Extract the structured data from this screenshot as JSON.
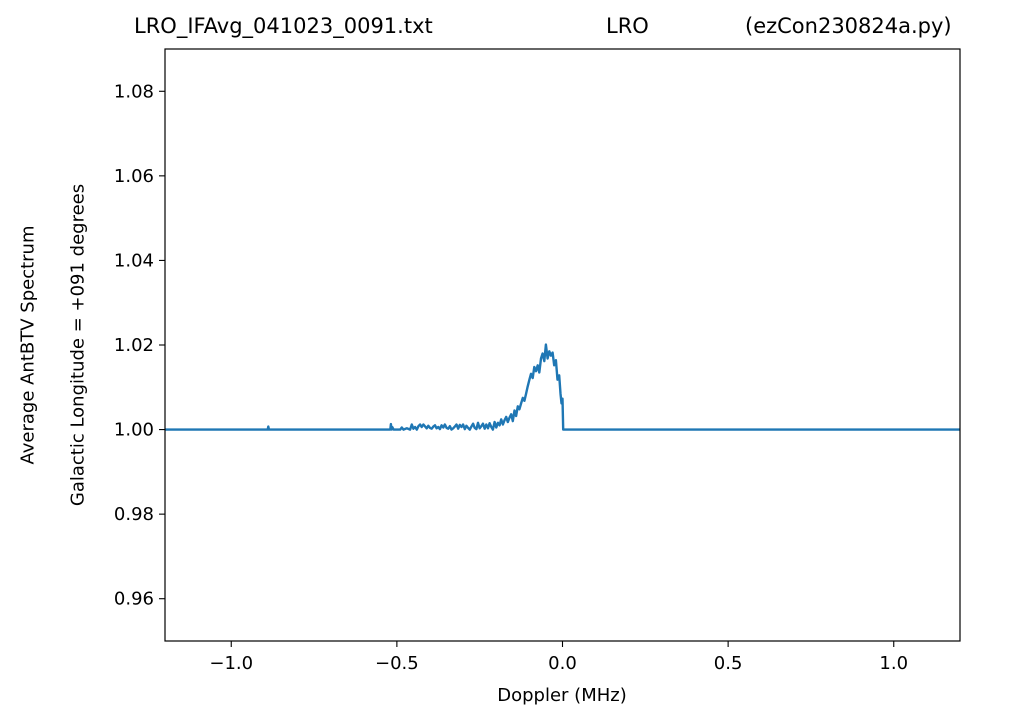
{
  "title": {
    "left": "LRO_IFAvg_041023_0091.txt",
    "middle": "LRO",
    "right": "(ezCon230824a.py)"
  },
  "chart_data": {
    "type": "line",
    "xlabel": "Doppler (MHz)",
    "ylabel_lines": [
      "Average AntBTV Spectrum",
      "Galactic Longitude = +091 degrees"
    ],
    "xlim": [
      -1.2,
      1.2
    ],
    "ylim": [
      0.95,
      1.09
    ],
    "x_ticks": [
      -1.0,
      -0.5,
      0.0,
      0.5,
      1.0
    ],
    "x_tick_labels": [
      "−1.0",
      "−0.5",
      "0.0",
      "0.5",
      "1.0"
    ],
    "y_ticks": [
      0.96,
      0.98,
      1.0,
      1.02,
      1.04,
      1.06,
      1.08
    ],
    "y_tick_labels": [
      "0.96",
      "0.98",
      "1.00",
      "1.02",
      "1.04",
      "1.06",
      "1.08"
    ],
    "grid": false,
    "line_color": "#1f77b4",
    "series": [
      {
        "x": [
          -1.2,
          -0.89,
          -0.888,
          -0.886,
          -0.52,
          -0.518,
          -0.516,
          -0.514,
          -0.51,
          -0.49,
          -0.485,
          -0.48,
          -0.47,
          -0.46,
          -0.455,
          -0.45,
          -0.445,
          -0.44,
          -0.435,
          -0.43,
          -0.425,
          -0.42,
          -0.41,
          -0.405,
          -0.4,
          -0.395,
          -0.39,
          -0.385,
          -0.38,
          -0.375,
          -0.37,
          -0.365,
          -0.36,
          -0.355,
          -0.35,
          -0.345,
          -0.34,
          -0.335,
          -0.33,
          -0.325,
          -0.32,
          -0.315,
          -0.31,
          -0.305,
          -0.3,
          -0.295,
          -0.29,
          -0.285,
          -0.28,
          -0.275,
          -0.27,
          -0.265,
          -0.26,
          -0.255,
          -0.25,
          -0.245,
          -0.24,
          -0.235,
          -0.23,
          -0.225,
          -0.22,
          -0.215,
          -0.21,
          -0.205,
          -0.2,
          -0.195,
          -0.19,
          -0.185,
          -0.18,
          -0.175,
          -0.17,
          -0.165,
          -0.16,
          -0.155,
          -0.15,
          -0.145,
          -0.14,
          -0.135,
          -0.13,
          -0.125,
          -0.12,
          -0.115,
          -0.11,
          -0.105,
          -0.1,
          -0.095,
          -0.09,
          -0.085,
          -0.08,
          -0.075,
          -0.07,
          -0.065,
          -0.06,
          -0.055,
          -0.05,
          -0.045,
          -0.04,
          -0.035,
          -0.03,
          -0.025,
          -0.02,
          -0.015,
          -0.01,
          -0.006,
          -0.003,
          0.0,
          0.002,
          1.2
        ],
        "y": [
          1.0,
          1.0,
          1.0007,
          1.0,
          1.0,
          1.0013,
          1.0,
          1.0006,
          1.0,
          1.0,
          1.0005,
          1.0,
          1.0003,
          1.0,
          1.0012,
          1.0002,
          1.0006,
          1.0,
          1.0008,
          1.0012,
          1.0006,
          1.0012,
          1.0003,
          1.0009,
          1.0004,
          1.0002,
          1.0007,
          1.001,
          1.0003,
          1.0006,
          1.0001,
          1.001,
          1.0005,
          1.0012,
          1.0004,
          1.0002,
          1.0008,
          1.0,
          1.0003,
          1.0007,
          1.0012,
          1.0002,
          1.0011,
          1.0006,
          1.0012,
          1.0001,
          1.0009,
          1.0004,
          1.0,
          1.0007,
          1.0014,
          1.0004,
          1.0001,
          1.0016,
          1.0003,
          1.0008,
          1.0014,
          1.0002,
          1.0012,
          1.0003,
          1.0015,
          1.0006,
          1.0,
          1.0018,
          1.0005,
          1.0016,
          1.001,
          1.0024,
          1.0012,
          1.0022,
          1.003,
          1.0018,
          1.0028,
          1.0036,
          1.002,
          1.0045,
          1.0032,
          1.0055,
          1.0048,
          1.0062,
          1.0075,
          1.0068,
          1.0085,
          1.0102,
          1.0118,
          1.0132,
          1.0122,
          1.0148,
          1.0138,
          1.0152,
          1.0135,
          1.0168,
          1.018,
          1.0162,
          1.0201,
          1.0168,
          1.0185,
          1.0175,
          1.0182,
          1.0152,
          1.0164,
          1.0118,
          1.0128,
          1.0085,
          1.0062,
          1.0073,
          1.0,
          1.0
        ]
      }
    ]
  }
}
